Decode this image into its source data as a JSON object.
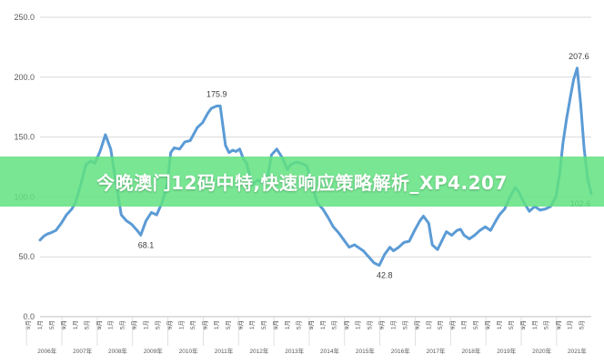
{
  "banner": {
    "text": "今晚澳门12码中特,快速响应策略解析_XP4.207",
    "color": "#5fe07f"
  },
  "chart_data": {
    "type": "line",
    "title": "",
    "xlabel": "",
    "ylabel": "",
    "ylim": [
      0,
      250
    ],
    "y_ticks": [
      "0.0",
      "50.0",
      "100.0",
      "150.0",
      "200.0",
      "250.0"
    ],
    "x_year_labels": [
      "2006年",
      "2007年",
      "2008年",
      "2009年",
      "2010年",
      "2011年",
      "2012年",
      "2013年",
      "2014年",
      "2015年",
      "2016年",
      "2017年",
      "2018年",
      "2019年",
      "2020年",
      "2021年"
    ],
    "x_month_labels": [
      "9月",
      "1月",
      "5月",
      "9月"
    ],
    "x_range": [
      2006.0,
      2021.6
    ],
    "grid": true,
    "line_color": "#5b9bd5",
    "series": [
      {
        "x": [
          2006.0,
          2006.1,
          2006.2,
          2006.3,
          2006.45,
          2006.6,
          2006.75,
          2006.9,
          2007.0,
          2007.15,
          2007.3,
          2007.45,
          2007.55,
          2007.7,
          2007.85,
          2008.0,
          2008.15,
          2008.3,
          2008.45,
          2008.5,
          2008.6,
          2008.75,
          2008.85,
          2009.0,
          2009.15,
          2009.3,
          2009.45,
          2009.6,
          2009.7,
          2009.8,
          2009.95,
          2010.1,
          2010.25,
          2010.45,
          2010.6,
          2010.75,
          2010.85,
          2011.0,
          2011.1,
          2011.25,
          2011.35,
          2011.45,
          2011.55,
          2011.65,
          2011.75,
          2011.85,
          2012.0,
          2012.15,
          2012.3,
          2012.45,
          2012.55,
          2012.7,
          2012.85,
          2013.0,
          2013.1,
          2013.25,
          2013.4,
          2013.55,
          2013.7,
          2013.85,
          2014.0,
          2014.15,
          2014.3,
          2014.45,
          2014.6,
          2014.75,
          2014.9,
          2015.0,
          2015.15,
          2015.3,
          2015.45,
          2015.6,
          2015.75,
          2015.9,
          2016.0,
          2016.15,
          2016.3,
          2016.45,
          2016.6,
          2016.75,
          2016.85,
          2017.0,
          2017.1,
          2017.25,
          2017.4,
          2017.5,
          2017.65,
          2017.8,
          2017.9,
          2018.0,
          2018.15,
          2018.3,
          2018.45,
          2018.6,
          2018.75,
          2018.9,
          2019.0,
          2019.15,
          2019.3,
          2019.45,
          2019.55,
          2019.7,
          2019.85,
          2020.0,
          2020.15,
          2020.3,
          2020.45,
          2020.6,
          2020.7,
          2020.8,
          2020.9,
          2021.0,
          2021.1,
          2021.2,
          2021.3,
          2021.4,
          2021.5,
          2021.6
        ],
        "y": [
          64,
          67,
          69,
          70,
          72,
          78,
          85,
          90,
          95,
          110,
          127,
          130,
          128,
          138,
          152,
          140,
          112,
          85,
          80,
          79,
          77,
          72,
          68.1,
          80,
          87,
          85,
          95,
          110,
          137,
          141,
          140,
          146,
          147,
          158,
          162,
          170,
          174,
          175.9,
          176,
          143,
          137,
          139,
          138,
          140,
          132,
          128,
          110,
          114,
          112,
          118,
          135,
          140,
          133,
          123,
          127,
          129,
          128,
          126,
          110,
          95,
          90,
          83,
          75,
          70,
          64,
          58,
          60,
          58,
          55,
          50,
          45,
          42.8,
          52,
          58,
          55,
          58,
          62,
          63,
          72,
          80,
          84,
          78,
          60,
          56,
          65,
          71,
          68,
          72,
          73,
          68,
          65,
          68,
          72,
          75,
          72,
          80,
          85,
          90,
          100,
          108,
          104,
          95,
          88,
          92,
          89,
          90,
          92,
          100,
          118,
          145,
          165,
          182,
          198,
          207.6,
          178,
          140,
          115,
          102.6
        ]
      }
    ],
    "data_labels": [
      {
        "x": 2009.0,
        "y": 68.1,
        "text": "68.1"
      },
      {
        "x": 2011.0,
        "y": 175.9,
        "text": "175.9"
      },
      {
        "x": 2015.75,
        "y": 42.8,
        "text": "42.8"
      },
      {
        "x": 2021.25,
        "y": 207.6,
        "text": "207.6"
      },
      {
        "x": 2021.6,
        "y": 102.6,
        "text": "102.6"
      }
    ]
  }
}
